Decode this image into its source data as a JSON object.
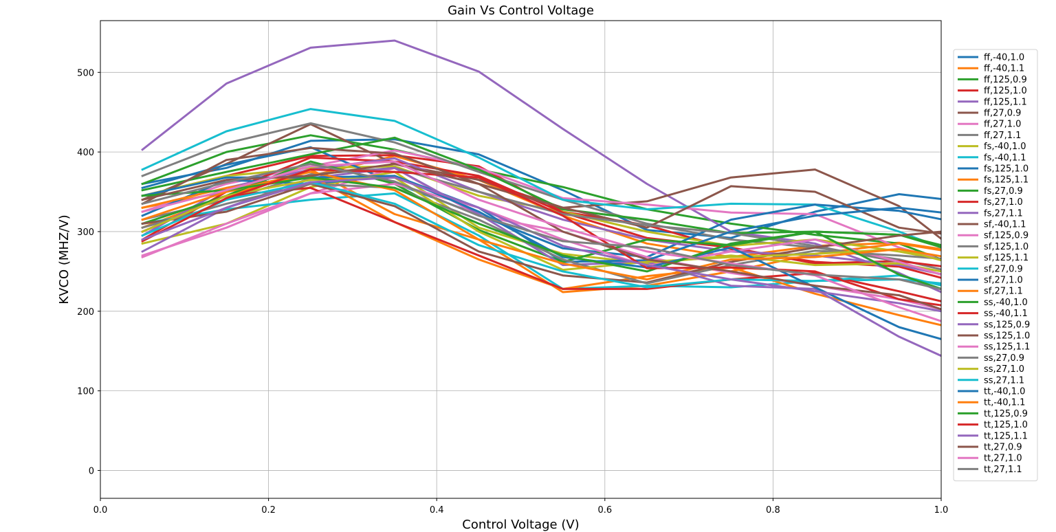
{
  "chart_data": {
    "type": "line",
    "title": "Gain  Vs Control Voltage",
    "xlabel": "Control Voltage (V)",
    "ylabel": "KVCO (MHZ/V)",
    "xlim": [
      0.0,
      1.0
    ],
    "ylim": [
      -35,
      565
    ],
    "x_ticks": [
      0.0,
      0.2,
      0.4,
      0.6,
      0.8,
      1.0
    ],
    "x_tick_labels": [
      "0.0",
      "0.2",
      "0.4",
      "0.6",
      "0.8",
      "1.0"
    ],
    "y_ticks": [
      0,
      100,
      200,
      300,
      400,
      500
    ],
    "y_tick_labels": [
      "0",
      "100",
      "200",
      "300",
      "400",
      "500"
    ],
    "grid": true,
    "legend_position": "right",
    "x": [
      0.05,
      0.15,
      0.25,
      0.35,
      0.45,
      0.55,
      0.65,
      0.75,
      0.85,
      0.95,
      1.05
    ],
    "series": [
      {
        "name": "ff,-40,1.0",
        "color": "#1f77b4",
        "values": [
          360,
          380,
          414,
          416,
          397,
          352,
          302,
          292,
          325,
          347,
          335
        ]
      },
      {
        "name": "ff,-40,1.1",
        "color": "#ff7f0e",
        "values": [
          330,
          350,
          370,
          395,
          365,
          320,
          285,
          268,
          282,
          286,
          270
        ]
      },
      {
        "name": "ff,125,0.9",
        "color": "#2ca02c",
        "values": [
          360,
          400,
          421,
          403,
          378,
          356,
          328,
          310,
          296,
          285,
          245
        ]
      },
      {
        "name": "ff,125,1.0",
        "color": "#d62728",
        "values": [
          345,
          370,
          395,
          396,
          382,
          325,
          308,
          278,
          262,
          256,
          228
        ]
      },
      {
        "name": "ff,125,1.1",
        "color": "#9467bd",
        "values": [
          403,
          486,
          531,
          540,
          501,
          429,
          360,
          300,
          285,
          248,
          200
        ]
      },
      {
        "name": "ff,27,0.9",
        "color": "#8c564b",
        "values": [
          340,
          385,
          435,
          385,
          365,
          330,
          338,
          368,
          378,
          332,
          250
        ]
      },
      {
        "name": "ff,27,1.0",
        "color": "#e377c2",
        "values": [
          325,
          360,
          382,
          402,
          380,
          342,
          334,
          324,
          322,
          280,
          250
        ]
      },
      {
        "name": "ff,27,1.1",
        "color": "#7f7f7f",
        "values": [
          370,
          411,
          436,
          412,
          375,
          340,
          310,
          290,
          280,
          265,
          240
        ]
      },
      {
        "name": "fs,-40,1.0",
        "color": "#bcbd22",
        "values": [
          345,
          370,
          380,
          382,
          345,
          325,
          300,
          282,
          290,
          275,
          255
        ]
      },
      {
        "name": "fs,-40,1.1",
        "color": "#17becf",
        "values": [
          378,
          426,
          454,
          439,
          393,
          340,
          328,
          335,
          334,
          300,
          260
        ]
      },
      {
        "name": "fs,125,1.0",
        "color": "#1f77b4",
        "values": [
          355,
          384,
          406,
          361,
          321,
          279,
          268,
          315,
          334,
          326,
          305
        ]
      },
      {
        "name": "fs,125,1.1",
        "color": "#ff7f0e",
        "values": [
          305,
          345,
          378,
          322,
          290,
          224,
          232,
          250,
          272,
          285,
          268
        ]
      },
      {
        "name": "fs,27,0.9",
        "color": "#2ca02c",
        "values": [
          352,
          375,
          397,
          418,
          378,
          328,
          315,
          298,
          300,
          296,
          270
        ]
      },
      {
        "name": "fs,27,1.0",
        "color": "#d62728",
        "values": [
          290,
          350,
          393,
          388,
          370,
          324,
          292,
          280,
          260,
          263,
          250
        ]
      },
      {
        "name": "fs,27,1.1",
        "color": "#9467bd",
        "values": [
          295,
          355,
          378,
          392,
          350,
          315,
          290,
          275,
          270,
          258,
          235
        ]
      },
      {
        "name": "sf,-40,1.1",
        "color": "#8c564b",
        "values": [
          335,
          390,
          405,
          398,
          360,
          330,
          305,
          357,
          350,
          305,
          290
        ]
      },
      {
        "name": "sf,125,0.9",
        "color": "#e377c2",
        "values": [
          270,
          305,
          348,
          380,
          320,
          300,
          268,
          248,
          232,
          215,
          190
        ]
      },
      {
        "name": "sf,125,1.0",
        "color": "#7f7f7f",
        "values": [
          315,
          340,
          372,
          380,
          350,
          322,
          308,
          298,
          282,
          262,
          230
        ]
      },
      {
        "name": "sf,125,1.1",
        "color": "#bcbd22",
        "values": [
          285,
          310,
          356,
          375,
          305,
          272,
          260,
          270,
          258,
          260,
          240
        ]
      },
      {
        "name": "sf,27,0.9",
        "color": "#17becf",
        "values": [
          310,
          328,
          340,
          348,
          295,
          228,
          232,
          230,
          238,
          240,
          230
        ]
      },
      {
        "name": "sf,27,1.0",
        "color": "#1f77b4",
        "values": [
          320,
          365,
          360,
          370,
          330,
          262,
          264,
          300,
          320,
          330,
          318
        ]
      },
      {
        "name": "sf,27,1.1",
        "color": "#ff7f0e",
        "values": [
          330,
          355,
          370,
          312,
          265,
          228,
          244,
          255,
          222,
          195,
          170
        ]
      },
      {
        "name": "ss,-40,1.0",
        "color": "#2ca02c",
        "values": [
          310,
          345,
          388,
          360,
          302,
          262,
          290,
          283,
          300,
          296,
          265
        ]
      },
      {
        "name": "ss,-40,1.1",
        "color": "#d62728",
        "values": [
          300,
          345,
          355,
          312,
          270,
          228,
          228,
          240,
          248,
          225,
          200
        ]
      },
      {
        "name": "ss,125,0.9",
        "color": "#9467bd",
        "values": [
          275,
          330,
          367,
          380,
          322,
          258,
          262,
          232,
          228,
          168,
          120
        ]
      },
      {
        "name": "ss,125,1.0",
        "color": "#8c564b",
        "values": [
          310,
          325,
          360,
          332,
          275,
          245,
          236,
          262,
          280,
          295,
          305
        ]
      },
      {
        "name": "ss,125,1.1",
        "color": "#e377c2",
        "values": [
          268,
          310,
          348,
          360,
          330,
          290,
          257,
          275,
          290,
          262,
          230
        ]
      },
      {
        "name": "ss,27,0.9",
        "color": "#7f7f7f",
        "values": [
          305,
          335,
          360,
          355,
          315,
          265,
          235,
          258,
          276,
          270,
          262
        ]
      },
      {
        "name": "ss,27,1.0",
        "color": "#bcbd22",
        "values": [
          300,
          345,
          365,
          368,
          300,
          252,
          262,
          268,
          272,
          278,
          250
        ]
      },
      {
        "name": "ss,27,1.1",
        "color": "#17becf",
        "values": [
          295,
          340,
          362,
          335,
          283,
          250,
          230,
          240,
          238,
          245,
          220
        ]
      },
      {
        "name": "tt,-40,1.0",
        "color": "#1f77b4",
        "values": [
          345,
          368,
          368,
          370,
          325,
          268,
          255,
          280,
          230,
          180,
          150
        ]
      },
      {
        "name": "tt,-40,1.1",
        "color": "#ff7f0e",
        "values": [
          315,
          350,
          375,
          352,
          290,
          260,
          240,
          265,
          268,
          278,
          260
        ]
      },
      {
        "name": "tt,125,0.9",
        "color": "#2ca02c",
        "values": [
          345,
          352,
          368,
          355,
          310,
          270,
          250,
          285,
          300,
          246,
          210
        ]
      },
      {
        "name": "tt,125,1.0",
        "color": "#d62728",
        "values": [
          288,
          342,
          378,
          375,
          368,
          320,
          254,
          255,
          250,
          215,
          200
        ]
      },
      {
        "name": "tt,125,1.1",
        "color": "#9467bd",
        "values": [
          290,
          330,
          362,
          368,
          330,
          282,
          258,
          240,
          225,
          210,
          190
        ]
      },
      {
        "name": "tt,27,0.9",
        "color": "#8c564b",
        "values": [
          340,
          365,
          370,
          385,
          360,
          300,
          265,
          250,
          232,
          220,
          185
        ]
      },
      {
        "name": "tt,27,1.0",
        "color": "#e377c2",
        "values": [
          325,
          352,
          382,
          388,
          340,
          305,
          275,
          260,
          245,
          205,
          170
        ]
      },
      {
        "name": "tt,27,1.1",
        "color": "#7f7f7f",
        "values": [
          335,
          362,
          385,
          363,
          320,
          288,
          280,
          258,
          246,
          240,
          215
        ]
      }
    ]
  }
}
